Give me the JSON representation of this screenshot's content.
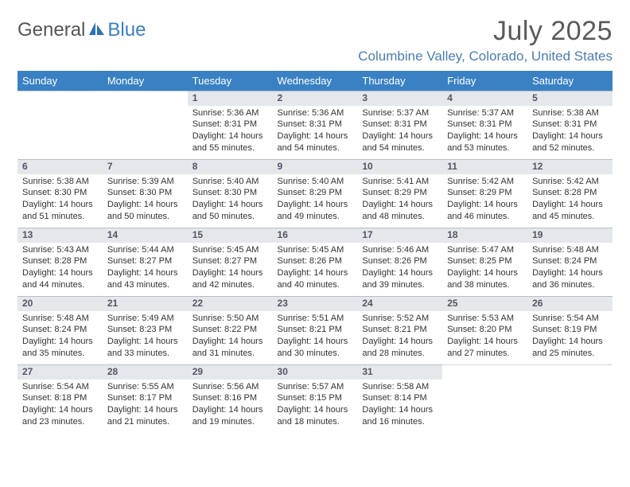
{
  "logo": {
    "text1": "General",
    "text2": "Blue"
  },
  "title": "July 2025",
  "location": "Columbine Valley, Colorado, United States",
  "colors": {
    "header_bg": "#3a81c4",
    "header_text": "#ffffff",
    "daynum_bg": "#e4e8eb",
    "location_color": "#4a7db5",
    "title_color": "#5a5a5a"
  },
  "weekdays": [
    "Sunday",
    "Monday",
    "Tuesday",
    "Wednesday",
    "Thursday",
    "Friday",
    "Saturday"
  ],
  "weeks": [
    [
      null,
      null,
      {
        "n": "1",
        "sunrise": "5:36 AM",
        "sunset": "8:31 PM",
        "daylight": "14 hours and 55 minutes."
      },
      {
        "n": "2",
        "sunrise": "5:36 AM",
        "sunset": "8:31 PM",
        "daylight": "14 hours and 54 minutes."
      },
      {
        "n": "3",
        "sunrise": "5:37 AM",
        "sunset": "8:31 PM",
        "daylight": "14 hours and 54 minutes."
      },
      {
        "n": "4",
        "sunrise": "5:37 AM",
        "sunset": "8:31 PM",
        "daylight": "14 hours and 53 minutes."
      },
      {
        "n": "5",
        "sunrise": "5:38 AM",
        "sunset": "8:31 PM",
        "daylight": "14 hours and 52 minutes."
      }
    ],
    [
      {
        "n": "6",
        "sunrise": "5:38 AM",
        "sunset": "8:30 PM",
        "daylight": "14 hours and 51 minutes."
      },
      {
        "n": "7",
        "sunrise": "5:39 AM",
        "sunset": "8:30 PM",
        "daylight": "14 hours and 50 minutes."
      },
      {
        "n": "8",
        "sunrise": "5:40 AM",
        "sunset": "8:30 PM",
        "daylight": "14 hours and 50 minutes."
      },
      {
        "n": "9",
        "sunrise": "5:40 AM",
        "sunset": "8:29 PM",
        "daylight": "14 hours and 49 minutes."
      },
      {
        "n": "10",
        "sunrise": "5:41 AM",
        "sunset": "8:29 PM",
        "daylight": "14 hours and 48 minutes."
      },
      {
        "n": "11",
        "sunrise": "5:42 AM",
        "sunset": "8:29 PM",
        "daylight": "14 hours and 46 minutes."
      },
      {
        "n": "12",
        "sunrise": "5:42 AM",
        "sunset": "8:28 PM",
        "daylight": "14 hours and 45 minutes."
      }
    ],
    [
      {
        "n": "13",
        "sunrise": "5:43 AM",
        "sunset": "8:28 PM",
        "daylight": "14 hours and 44 minutes."
      },
      {
        "n": "14",
        "sunrise": "5:44 AM",
        "sunset": "8:27 PM",
        "daylight": "14 hours and 43 minutes."
      },
      {
        "n": "15",
        "sunrise": "5:45 AM",
        "sunset": "8:27 PM",
        "daylight": "14 hours and 42 minutes."
      },
      {
        "n": "16",
        "sunrise": "5:45 AM",
        "sunset": "8:26 PM",
        "daylight": "14 hours and 40 minutes."
      },
      {
        "n": "17",
        "sunrise": "5:46 AM",
        "sunset": "8:26 PM",
        "daylight": "14 hours and 39 minutes."
      },
      {
        "n": "18",
        "sunrise": "5:47 AM",
        "sunset": "8:25 PM",
        "daylight": "14 hours and 38 minutes."
      },
      {
        "n": "19",
        "sunrise": "5:48 AM",
        "sunset": "8:24 PM",
        "daylight": "14 hours and 36 minutes."
      }
    ],
    [
      {
        "n": "20",
        "sunrise": "5:48 AM",
        "sunset": "8:24 PM",
        "daylight": "14 hours and 35 minutes."
      },
      {
        "n": "21",
        "sunrise": "5:49 AM",
        "sunset": "8:23 PM",
        "daylight": "14 hours and 33 minutes."
      },
      {
        "n": "22",
        "sunrise": "5:50 AM",
        "sunset": "8:22 PM",
        "daylight": "14 hours and 31 minutes."
      },
      {
        "n": "23",
        "sunrise": "5:51 AM",
        "sunset": "8:21 PM",
        "daylight": "14 hours and 30 minutes."
      },
      {
        "n": "24",
        "sunrise": "5:52 AM",
        "sunset": "8:21 PM",
        "daylight": "14 hours and 28 minutes."
      },
      {
        "n": "25",
        "sunrise": "5:53 AM",
        "sunset": "8:20 PM",
        "daylight": "14 hours and 27 minutes."
      },
      {
        "n": "26",
        "sunrise": "5:54 AM",
        "sunset": "8:19 PM",
        "daylight": "14 hours and 25 minutes."
      }
    ],
    [
      {
        "n": "27",
        "sunrise": "5:54 AM",
        "sunset": "8:18 PM",
        "daylight": "14 hours and 23 minutes."
      },
      {
        "n": "28",
        "sunrise": "5:55 AM",
        "sunset": "8:17 PM",
        "daylight": "14 hours and 21 minutes."
      },
      {
        "n": "29",
        "sunrise": "5:56 AM",
        "sunset": "8:16 PM",
        "daylight": "14 hours and 19 minutes."
      },
      {
        "n": "30",
        "sunrise": "5:57 AM",
        "sunset": "8:15 PM",
        "daylight": "14 hours and 18 minutes."
      },
      {
        "n": "31",
        "sunrise": "5:58 AM",
        "sunset": "8:14 PM",
        "daylight": "14 hours and 16 minutes."
      },
      null,
      null
    ]
  ],
  "labels": {
    "sunrise": "Sunrise: ",
    "sunset": "Sunset: ",
    "daylight": "Daylight: "
  }
}
